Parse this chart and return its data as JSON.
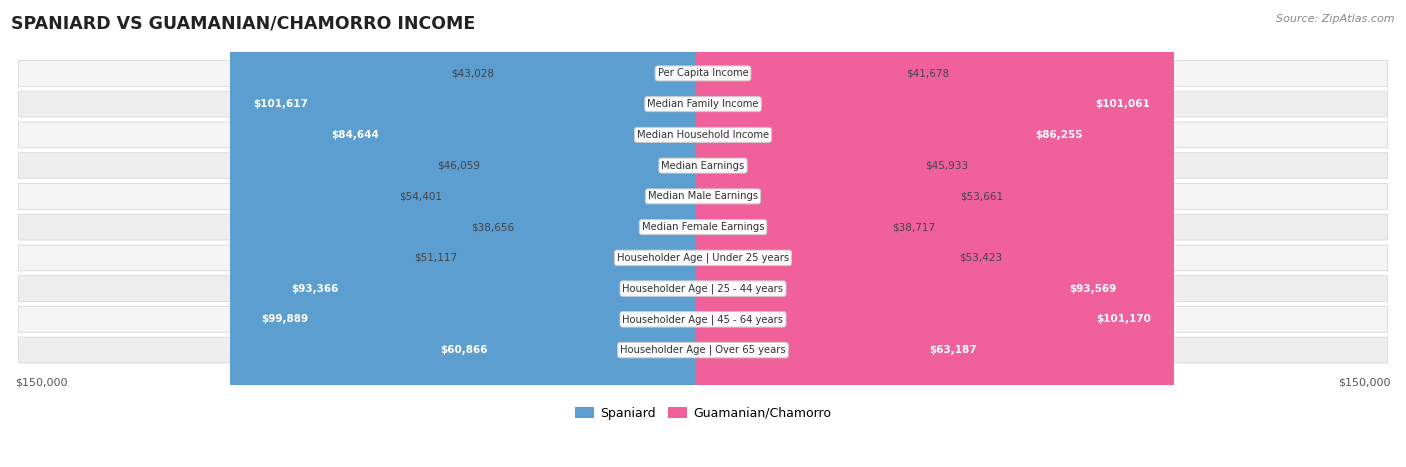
{
  "title": "SPANIARD VS GUAMANIAN/CHAMORRO INCOME",
  "source": "Source: ZipAtlas.com",
  "categories": [
    "Per Capita Income",
    "Median Family Income",
    "Median Household Income",
    "Median Earnings",
    "Median Male Earnings",
    "Median Female Earnings",
    "Householder Age | Under 25 years",
    "Householder Age | 25 - 44 years",
    "Householder Age | 45 - 64 years",
    "Householder Age | Over 65 years"
  ],
  "spaniard_values": [
    43028,
    101617,
    84644,
    46059,
    54401,
    38656,
    51117,
    93366,
    99889,
    60866
  ],
  "guamanian_values": [
    41678,
    101061,
    86255,
    45933,
    53661,
    38717,
    53423,
    93569,
    101170,
    63187
  ],
  "spaniard_labels": [
    "$43,028",
    "$101,617",
    "$84,644",
    "$46,059",
    "$54,401",
    "$38,656",
    "$51,117",
    "$93,366",
    "$99,889",
    "$60,866"
  ],
  "guamanian_labels": [
    "$41,678",
    "$101,061",
    "$86,255",
    "$45,933",
    "$53,661",
    "$38,717",
    "$53,423",
    "$93,569",
    "$101,170",
    "$63,187"
  ],
  "spaniard_color_light": "#a8cce4",
  "spaniard_color_dark": "#5b9ecf",
  "guamanian_color_light": "#f4a8c0",
  "guamanian_color_dark": "#f0609a",
  "max_value": 150000,
  "bg_color": "#ffffff",
  "label_threshold": 55000,
  "legend_spaniard": "Spaniard",
  "legend_guamanian": "Guamanian/Chamorro"
}
